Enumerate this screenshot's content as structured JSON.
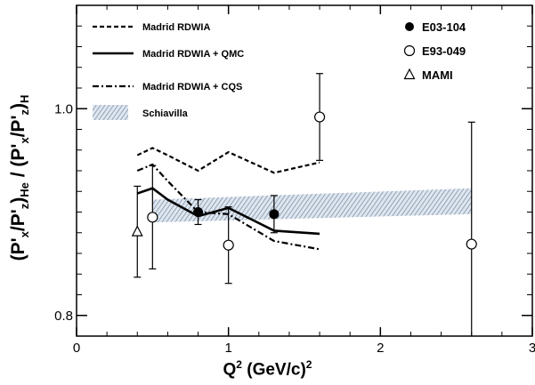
{
  "chart_data": {
    "type": "scatter",
    "xlabel": "Q² (GeV/c)²",
    "xlabel_parts": {
      "q": "Q",
      "exp": "2",
      "rest": " (GeV/c)",
      "exp2": "2"
    },
    "ylabel": "(P'x/P'z)He / (P'x/P'z)H",
    "ylabel_parts": {
      "open": "(P'",
      "x1": "x",
      "mid1": "/P'",
      "z1": "z",
      "close1": ")",
      "he": "He",
      "sep": " / (P'",
      "x2": "x",
      "mid2": "/P'",
      "z2": "z",
      "close2": ")",
      "h": "H"
    },
    "xlim": [
      0,
      3
    ],
    "ylim": [
      0.78,
      1.1
    ],
    "xticks": [
      0,
      1,
      2,
      3
    ],
    "xtick_labels": [
      "0",
      "1",
      "2",
      "3"
    ],
    "yticks": [
      0.8,
      1.0
    ],
    "ytick_labels": [
      "0.8",
      "1.0"
    ],
    "grid": false,
    "legend_position": "top",
    "legend": [
      {
        "label": "Madrid RDWIA",
        "style": "dashed"
      },
      {
        "label": "Madrid RDWIA + QMC",
        "style": "solid"
      },
      {
        "label": "Madrid RDWIA + CQS",
        "style": "dashdot"
      },
      {
        "label": "Schiavilla",
        "style": "band"
      },
      {
        "label": "E03-104",
        "style": "filled-circle"
      },
      {
        "label": "E93-049",
        "style": "open-circle"
      },
      {
        "label": "MAMI",
        "style": "open-triangle"
      }
    ],
    "curves": [
      {
        "name": "Madrid RDWIA",
        "style": "dashed",
        "x": [
          0.4,
          0.5,
          0.6,
          0.8,
          1.0,
          1.3,
          1.6
        ],
        "y": [
          0.955,
          0.962,
          0.955,
          0.94,
          0.958,
          0.938,
          0.948
        ]
      },
      {
        "name": "Madrid RDWIA + QMC",
        "style": "solid",
        "x": [
          0.4,
          0.5,
          0.6,
          0.8,
          1.0,
          1.3,
          1.6
        ],
        "y": [
          0.918,
          0.923,
          0.912,
          0.896,
          0.904,
          0.882,
          0.879
        ]
      },
      {
        "name": "Madrid RDWIA + CQS",
        "style": "dashdot",
        "x": [
          0.4,
          0.5,
          0.6,
          0.8,
          1.0,
          1.3,
          1.6
        ],
        "y": [
          0.94,
          0.946,
          0.93,
          0.9,
          0.898,
          0.872,
          0.864
        ]
      }
    ],
    "band": {
      "name": "Schiavilla",
      "x": [
        0.5,
        2.6
      ],
      "y_low": [
        0.89,
        0.898
      ],
      "y_high": [
        0.912,
        0.923
      ]
    },
    "series": [
      {
        "name": "E03-104",
        "marker": "filled-circle",
        "points": [
          {
            "x": 0.8,
            "y": 0.9,
            "err": 0.012
          },
          {
            "x": 1.3,
            "y": 0.898,
            "err": 0.018
          }
        ]
      },
      {
        "name": "E93-049",
        "marker": "open-circle",
        "points": [
          {
            "x": 0.5,
            "y": 0.895,
            "err": 0.05
          },
          {
            "x": 1.0,
            "y": 0.868,
            "err": 0.037
          },
          {
            "x": 1.6,
            "y": 0.992,
            "err": 0.042
          },
          {
            "x": 2.6,
            "y": 0.869,
            "err": 0.118
          }
        ]
      },
      {
        "name": "MAMI",
        "marker": "open-triangle",
        "points": [
          {
            "x": 0.4,
            "y": 0.881,
            "err": 0.044
          }
        ]
      }
    ]
  }
}
